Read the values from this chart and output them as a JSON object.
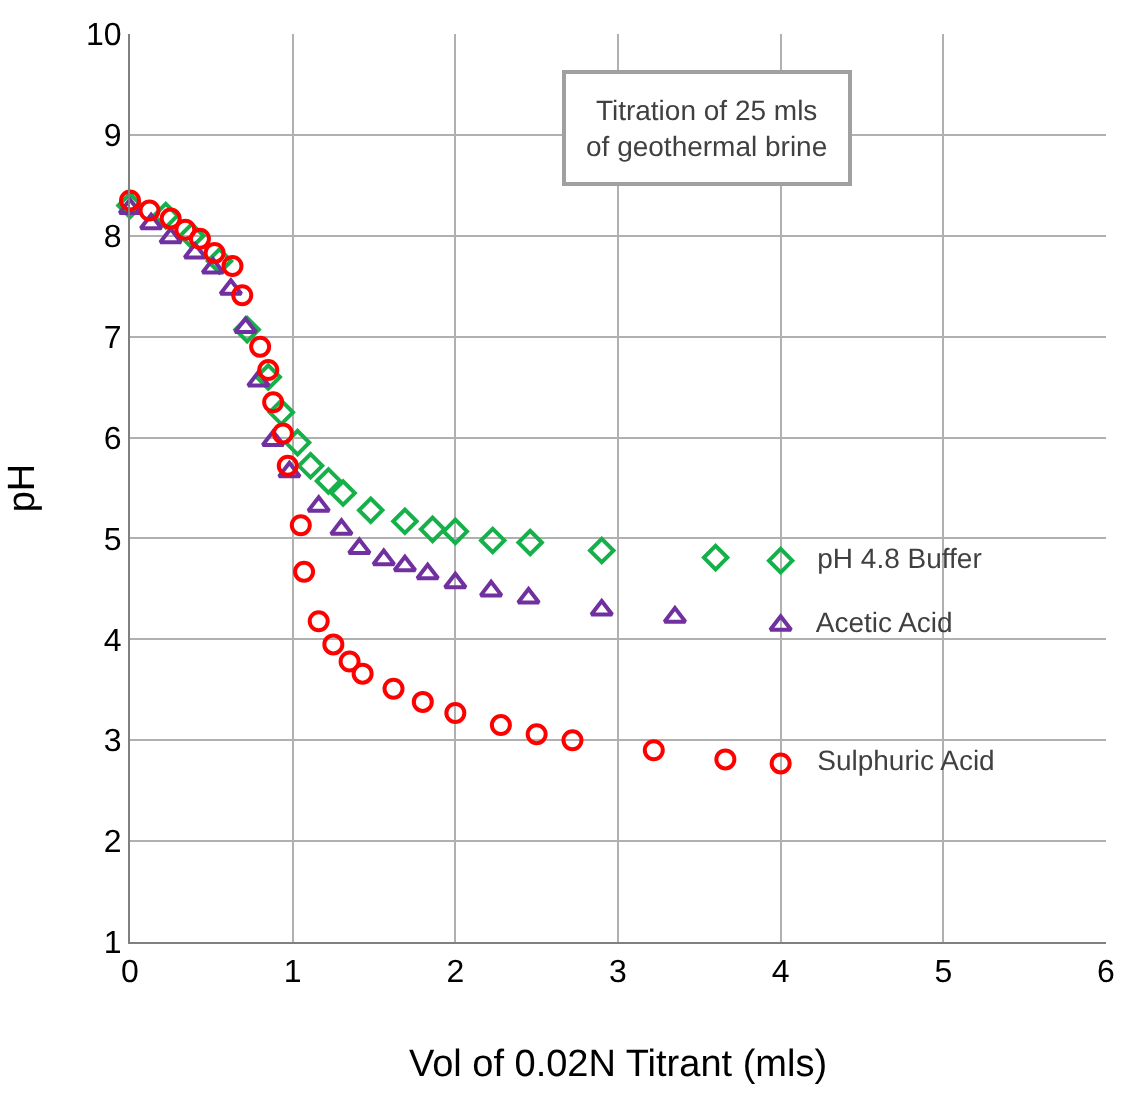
{
  "chart_data": {
    "type": "scatter",
    "xlabel": "Vol of 0.02N Titrant (mls)",
    "ylabel": "pH",
    "annotations": [
      "Titration of 25 mls of geothermal brine"
    ],
    "xlim": [
      0,
      6
    ],
    "ylim": [
      1,
      10
    ],
    "xticks": [
      0,
      1,
      2,
      3,
      4,
      5,
      6
    ],
    "yticks": [
      1,
      2,
      3,
      4,
      5,
      6,
      7,
      8,
      9,
      10
    ],
    "grid": true,
    "legend": false,
    "series": [
      {
        "name": "pH 4.8 Buffer",
        "color": "#16b04a",
        "marker": "diamond",
        "x": [
          0,
          0.22,
          0.38,
          0.55,
          0.72,
          0.85,
          0.93,
          1.03,
          1.11,
          1.22,
          1.31,
          1.48,
          1.69,
          1.86,
          2.0,
          2.23,
          2.46,
          2.9,
          3.6,
          4.0
        ],
        "values": [
          8.3,
          8.2,
          8.0,
          7.75,
          7.07,
          6.6,
          6.25,
          5.95,
          5.72,
          5.57,
          5.45,
          5.28,
          5.17,
          5.09,
          5.07,
          4.98,
          4.96,
          4.88,
          4.81,
          4.78
        ]
      },
      {
        "name": "Acetic Acid",
        "color": "#7030a0",
        "marker": "triangle",
        "x": [
          0,
          0.13,
          0.25,
          0.4,
          0.51,
          0.62,
          0.71,
          0.79,
          0.88,
          0.98,
          1.16,
          1.3,
          1.41,
          1.56,
          1.69,
          1.83,
          2.0,
          2.22,
          2.45,
          2.9,
          3.35,
          4.0
        ],
        "values": [
          8.27,
          8.12,
          7.98,
          7.83,
          7.68,
          7.47,
          7.09,
          6.56,
          5.97,
          5.66,
          5.32,
          5.09,
          4.9,
          4.79,
          4.73,
          4.65,
          4.56,
          4.48,
          4.41,
          4.29,
          4.22,
          4.14
        ]
      },
      {
        "name": "Sulphuric Acid",
        "color": "#ff0000",
        "marker": "circle",
        "x": [
          0,
          0.12,
          0.25,
          0.34,
          0.43,
          0.52,
          0.63,
          0.69,
          0.8,
          0.85,
          0.88,
          0.94,
          0.97,
          1.05,
          1.07,
          1.16,
          1.25,
          1.35,
          1.43,
          1.62,
          1.8,
          2.0,
          2.28,
          2.5,
          2.72,
          3.22,
          3.66,
          4.0
        ],
        "values": [
          8.35,
          8.25,
          8.17,
          8.06,
          7.97,
          7.83,
          7.7,
          7.41,
          6.9,
          6.67,
          6.35,
          6.04,
          5.72,
          5.13,
          4.67,
          4.18,
          3.95,
          3.78,
          3.66,
          3.51,
          3.38,
          3.27,
          3.15,
          3.06,
          3.0,
          2.9,
          2.81,
          2.77
        ]
      }
    ]
  }
}
